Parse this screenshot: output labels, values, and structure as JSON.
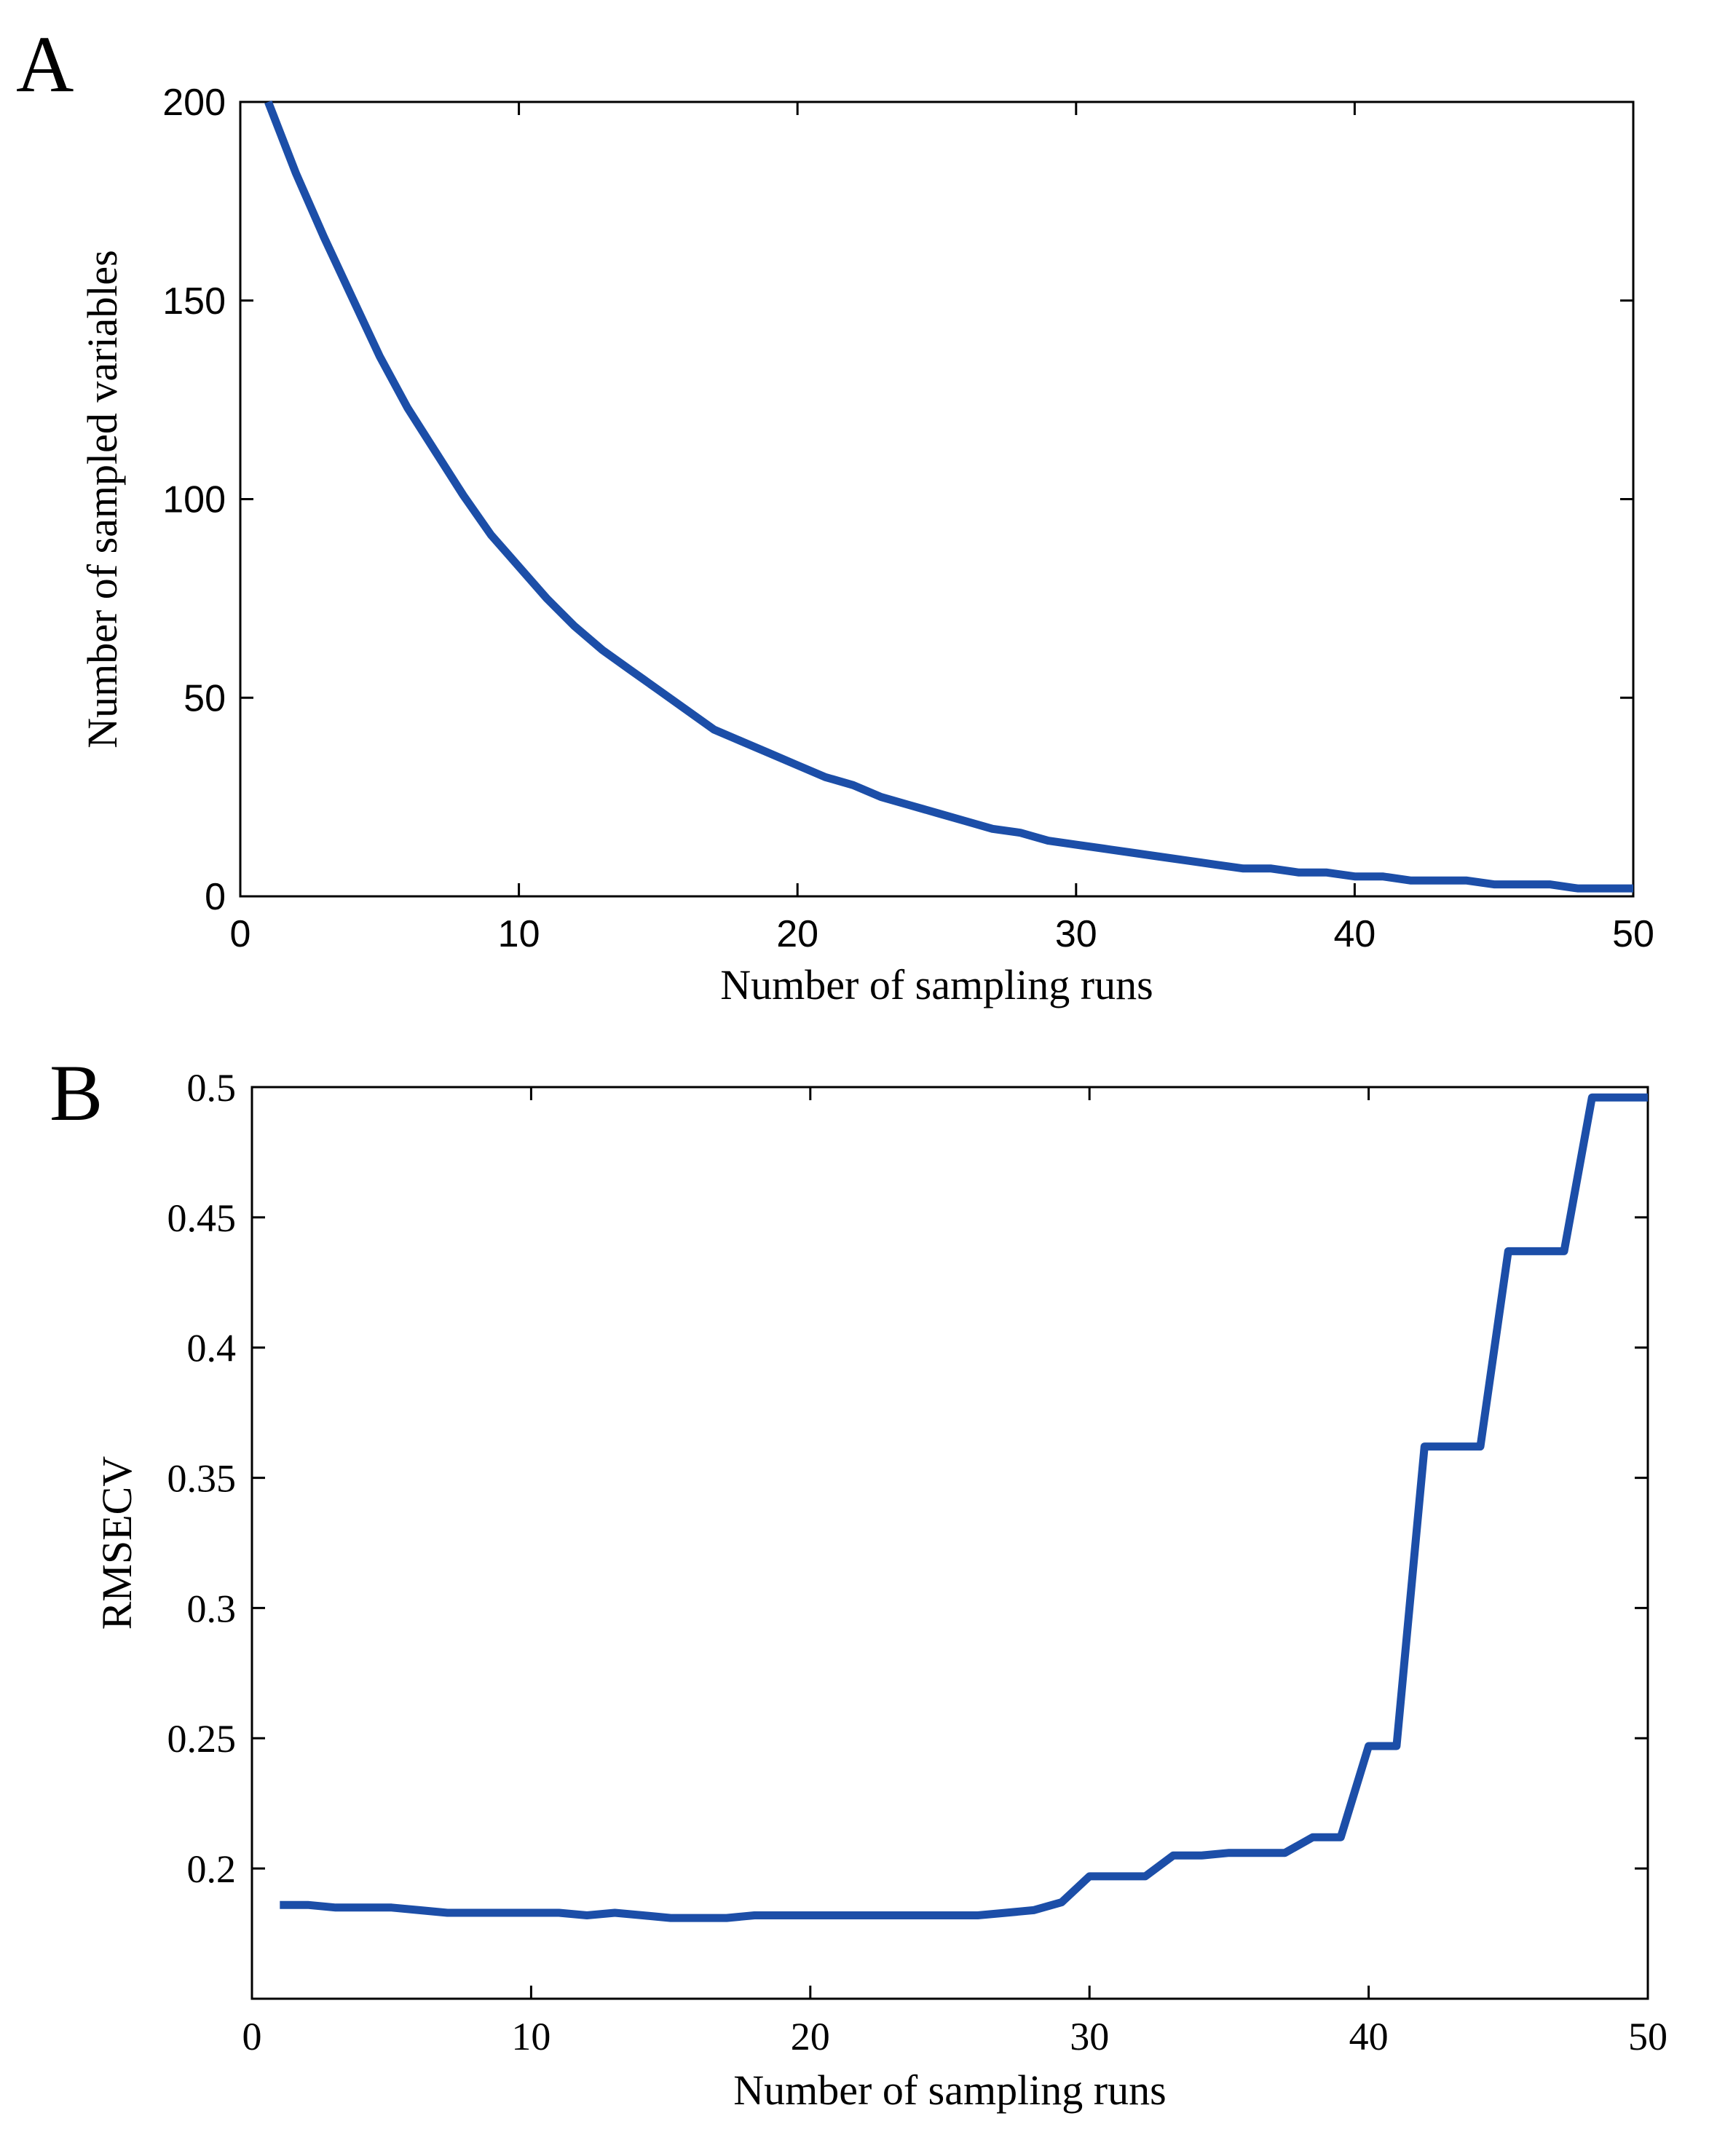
{
  "colors": {
    "line": "#1c4ea8",
    "axis": "#000000",
    "background": "#ffffff"
  },
  "chart_data": [
    {
      "panel_label": "A",
      "type": "line",
      "title": "",
      "xlabel": "Number of sampling runs",
      "ylabel": "Number of sampled variables",
      "xlim": [
        0,
        50
      ],
      "ylim": [
        0,
        200
      ],
      "xticks": [
        0,
        10,
        20,
        30,
        40,
        50
      ],
      "yticks": [
        0,
        50,
        100,
        150,
        200
      ],
      "xtick_labels": [
        "0",
        "10",
        "20",
        "30",
        "40",
        "50"
      ],
      "ytick_labels": [
        "0",
        "50",
        "100",
        "150",
        "200"
      ],
      "grid": false,
      "series": [
        {
          "name": "sampled variables",
          "x": [
            1,
            2,
            3,
            4,
            5,
            6,
            7,
            8,
            9,
            10,
            11,
            12,
            13,
            14,
            15,
            16,
            17,
            18,
            19,
            20,
            21,
            22,
            23,
            24,
            25,
            26,
            27,
            28,
            29,
            30,
            31,
            32,
            33,
            34,
            35,
            36,
            37,
            38,
            39,
            40,
            41,
            42,
            43,
            44,
            45,
            46,
            47,
            48,
            49,
            50
          ],
          "y": [
            200,
            182,
            166,
            151,
            136,
            123,
            112,
            101,
            91,
            83,
            75,
            68,
            62,
            57,
            52,
            47,
            42,
            39,
            36,
            33,
            30,
            28,
            25,
            23,
            21,
            19,
            17,
            16,
            14,
            13,
            12,
            11,
            10,
            9,
            8,
            7,
            7,
            6,
            6,
            5,
            5,
            4,
            4,
            4,
            3,
            3,
            3,
            2,
            2,
            2
          ]
        }
      ]
    },
    {
      "panel_label": "B",
      "type": "line",
      "title": "",
      "xlabel": "Number of sampling runs",
      "ylabel": "RMSECV",
      "xlim": [
        0,
        50
      ],
      "ylim": [
        0.15,
        0.5
      ],
      "xticks": [
        0,
        10,
        20,
        30,
        40,
        50
      ],
      "yticks": [
        0.2,
        0.25,
        0.3,
        0.35,
        0.4,
        0.45,
        0.5
      ],
      "xtick_labels": [
        "0",
        "10",
        "20",
        "30",
        "40",
        "50"
      ],
      "ytick_labels": [
        "0.2",
        "0.25",
        "0.3",
        "0.35",
        "0.4",
        "0.45",
        "0.5"
      ],
      "grid": false,
      "series": [
        {
          "name": "RMSECV",
          "x": [
            1,
            2,
            3,
            4,
            5,
            6,
            7,
            8,
            9,
            10,
            11,
            12,
            13,
            14,
            15,
            16,
            17,
            18,
            19,
            20,
            21,
            22,
            23,
            24,
            25,
            26,
            27,
            28,
            29,
            30,
            31,
            32,
            33,
            34,
            35,
            36,
            37,
            38,
            39,
            40,
            41,
            42,
            43,
            44,
            45,
            46,
            47,
            48,
            49,
            50
          ],
          "y": [
            0.186,
            0.186,
            0.185,
            0.185,
            0.185,
            0.184,
            0.183,
            0.183,
            0.183,
            0.183,
            0.183,
            0.182,
            0.183,
            0.182,
            0.181,
            0.181,
            0.181,
            0.182,
            0.182,
            0.182,
            0.182,
            0.182,
            0.182,
            0.182,
            0.182,
            0.182,
            0.183,
            0.184,
            0.187,
            0.197,
            0.197,
            0.197,
            0.205,
            0.205,
            0.206,
            0.206,
            0.206,
            0.212,
            0.212,
            0.247,
            0.247,
            0.362,
            0.362,
            0.362,
            0.437,
            0.437,
            0.437,
            0.496,
            0.496,
            0.496
          ]
        }
      ]
    }
  ]
}
